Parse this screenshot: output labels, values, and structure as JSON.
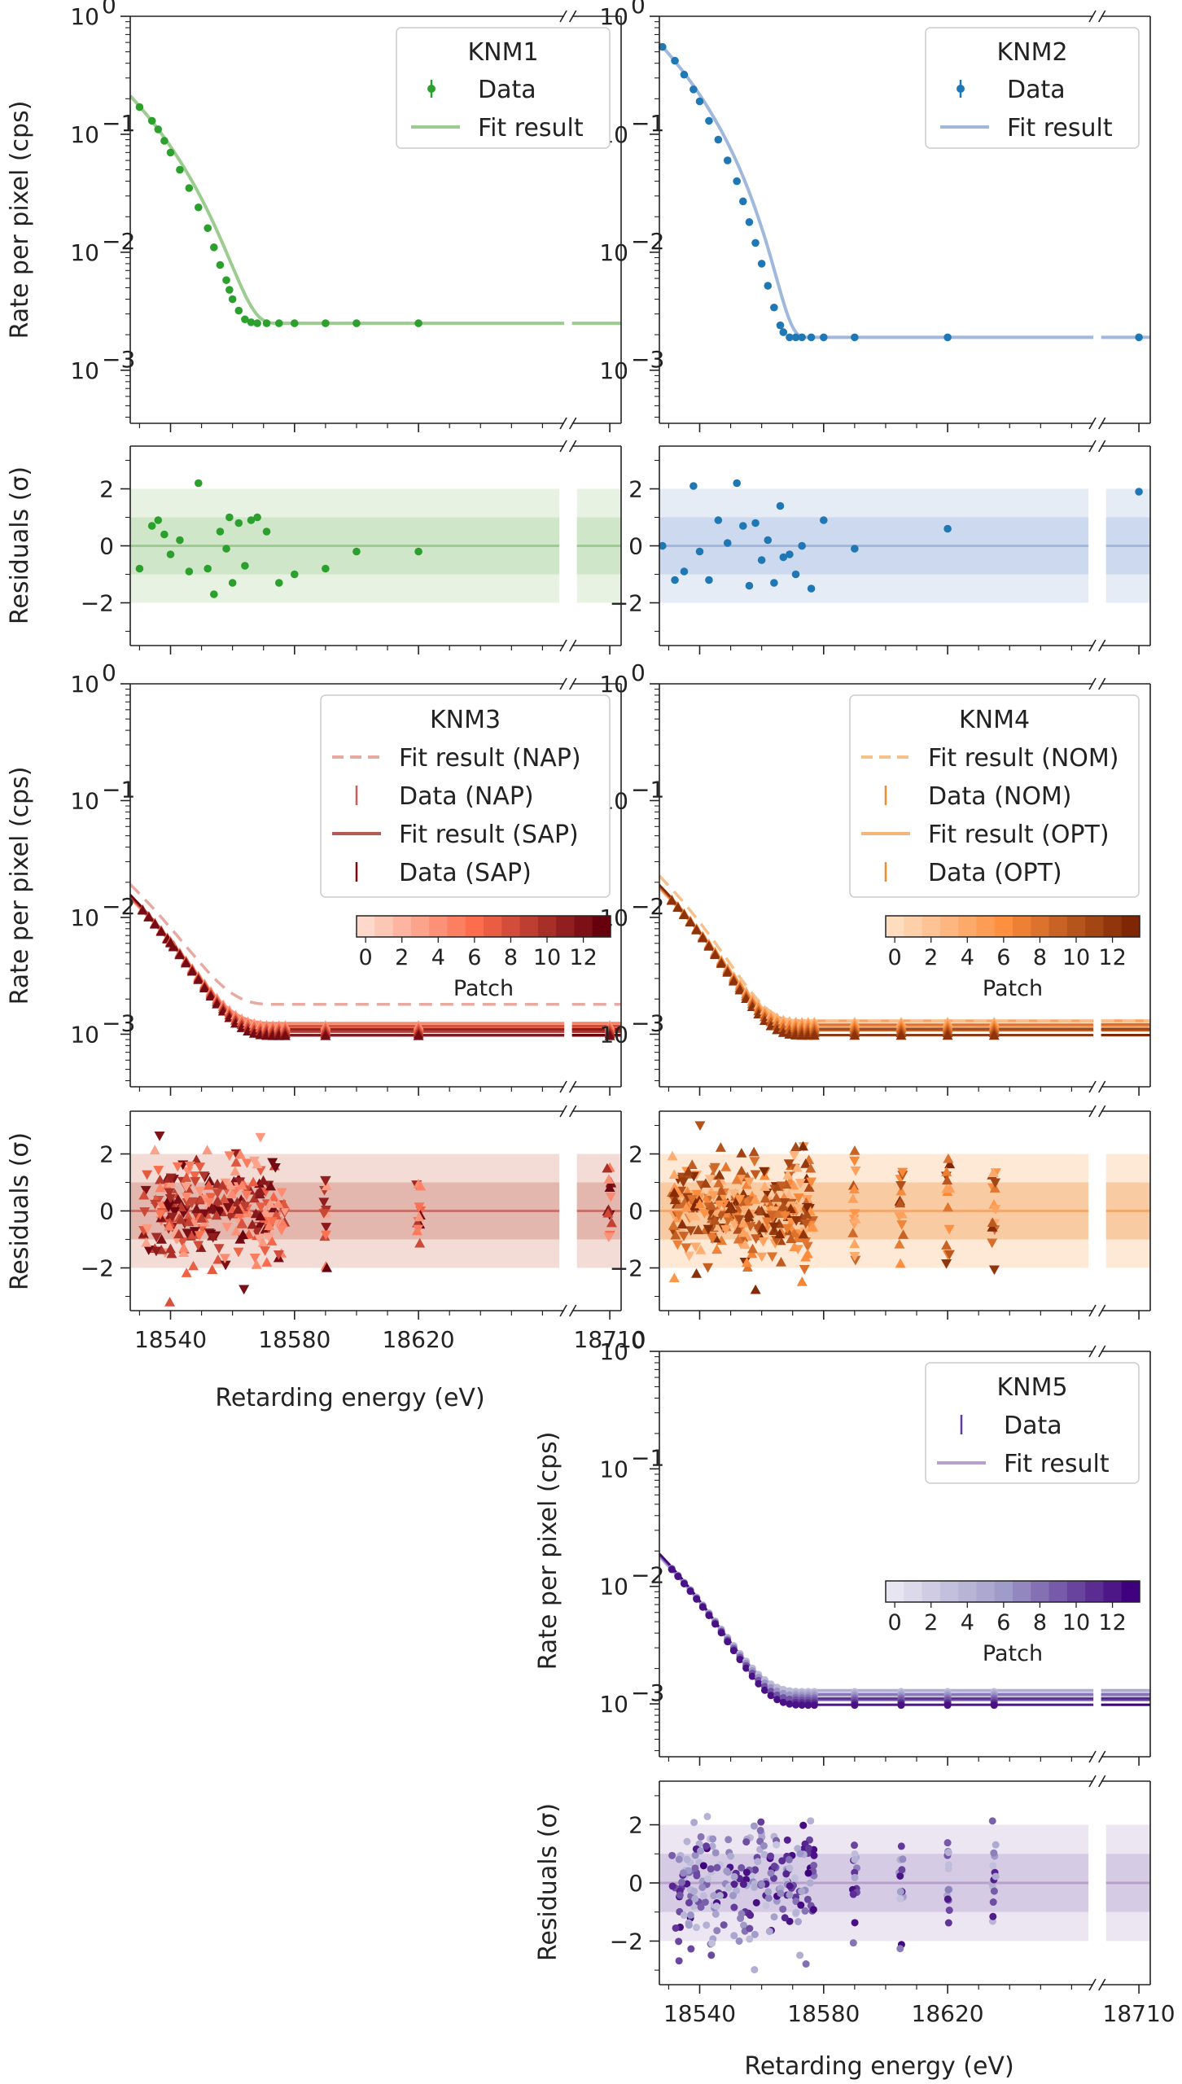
{
  "figure": {
    "xlabel": "Retarding energy (eV)",
    "ylabel_rate": "Rate per pixel (cps)",
    "ylabel_res": "Residuals (σ)",
    "x_ticks": [
      "18540",
      "18580",
      "18620",
      "18710"
    ],
    "x_tick_values": [
      18540,
      18580,
      18620,
      18710
    ],
    "x_break_segments": [
      [
        18527,
        18667
      ],
      [
        18700,
        18713
      ]
    ],
    "y_rate_ticks": [
      {
        "exp": 0,
        "label_base": "10",
        "label_exp": "0",
        "value": 1
      },
      {
        "exp": -1,
        "label_base": "10",
        "label_exp": "−1",
        "value": 0.1
      },
      {
        "exp": -2,
        "label_base": "10",
        "label_exp": "−2",
        "value": 0.01
      },
      {
        "exp": -3,
        "label_base": "10",
        "label_exp": "−3",
        "value": 0.001
      }
    ],
    "y_res_ticks": [
      "2",
      "0",
      "−2"
    ],
    "y_res_tick_values": [
      2,
      0,
      -2
    ],
    "y_res_range": [
      -3.5,
      3.5
    ],
    "y_rate_range_log10": [
      -3.45,
      0.0
    ]
  },
  "chart_data": [
    {
      "type": "scatter",
      "panel": "KNM1",
      "scale": "log",
      "color": "#2ca02c",
      "fit_color": "#9ccc8f",
      "legend": {
        "title": "KNM1",
        "entries": [
          "Data",
          "Fit result"
        ]
      },
      "x": [
        18530,
        18534,
        18536,
        18538,
        18540,
        18543,
        18546,
        18549,
        18552,
        18554,
        18556,
        18558,
        18559,
        18560,
        18562,
        18564,
        18566,
        18568,
        18571,
        18575,
        18580,
        18590,
        18600,
        18620
      ],
      "rate": [
        0.17,
        0.13,
        0.11,
        0.088,
        0.07,
        0.05,
        0.035,
        0.024,
        0.016,
        0.011,
        0.0078,
        0.0058,
        0.0048,
        0.004,
        0.0032,
        0.0027,
        0.00255,
        0.0025,
        0.0025,
        0.0025,
        0.0025,
        0.0025,
        0.0025,
        0.0025
      ],
      "residuals": [
        -0.8,
        0.7,
        0.9,
        0.4,
        -0.3,
        0.2,
        -0.9,
        2.2,
        -0.8,
        -1.7,
        0.5,
        -0.1,
        1.0,
        -1.3,
        0.8,
        -0.7,
        0.9,
        1.0,
        0.5,
        -1.3,
        -1.0,
        -0.8,
        -0.2,
        -0.2
      ],
      "background_rate": 0.0025
    },
    {
      "type": "scatter",
      "panel": "KNM2",
      "scale": "log",
      "color": "#1f77b4",
      "fit_color": "#9fb8dc",
      "legend": {
        "title": "KNM2",
        "entries": [
          "Data",
          "Fit result"
        ]
      },
      "x": [
        18528,
        18532,
        18535,
        18538,
        18540,
        18543,
        18546,
        18549,
        18552,
        18554,
        18556,
        18558,
        18560,
        18562,
        18564,
        18566,
        18567,
        18569,
        18571,
        18573,
        18576,
        18580,
        18590,
        18620,
        18710
      ],
      "rate": [
        0.55,
        0.42,
        0.32,
        0.24,
        0.19,
        0.13,
        0.09,
        0.06,
        0.04,
        0.027,
        0.018,
        0.012,
        0.008,
        0.0052,
        0.0034,
        0.0024,
        0.0021,
        0.0019,
        0.0019,
        0.0019,
        0.0019,
        0.0019,
        0.0019,
        0.0019,
        0.0019
      ],
      "residuals": [
        0.0,
        -1.2,
        -0.9,
        2.1,
        -0.2,
        -1.2,
        0.9,
        0.1,
        2.2,
        0.7,
        -1.4,
        0.8,
        -0.5,
        0.2,
        -1.3,
        1.4,
        -0.4,
        -0.3,
        -1.0,
        0.0,
        -1.5,
        0.9,
        -0.1,
        0.6,
        1.9
      ],
      "background_rate": 0.0019
    },
    {
      "type": "scatter",
      "panel": "KNM3",
      "scale": "log",
      "palette": "Reds",
      "series": [
        {
          "name": "Fit result (NAP)",
          "style": "dashed",
          "color": "#e8a9a0",
          "background_rate": 0.0018
        },
        {
          "name": "Data (NAP)",
          "marker": "triangle-up",
          "color": "#cd5c5c"
        },
        {
          "name": "Fit result (SAP)",
          "style": "solid",
          "color": "#b45a52",
          "background_rate": 0.00105
        },
        {
          "name": "Data (SAP)",
          "marker": "triangle-down",
          "color": "#7a0a0a"
        }
      ],
      "legend": {
        "title": "KNM3",
        "entries": [
          "Fit result (NAP)",
          "Data (NAP)",
          "Fit result (SAP)",
          "Data (SAP)"
        ]
      },
      "colorbar": {
        "label": "Patch",
        "ticks": [
          "0",
          "2",
          "4",
          "6",
          "8",
          "10",
          "12"
        ],
        "range": [
          0,
          13
        ]
      },
      "scan_points": [
        18540,
        18590,
        18620,
        18710
      ],
      "data_range": [
        18531,
        18577
      ]
    },
    {
      "type": "scatter",
      "panel": "KNM4",
      "scale": "log",
      "palette": "Oranges",
      "series": [
        {
          "name": "Fit result (NOM)",
          "style": "dashed",
          "color": "#f7c08a",
          "background_rate": 0.0013
        },
        {
          "name": "Data (NOM)",
          "marker": "triangle-up",
          "color": "#f08c2e"
        },
        {
          "name": "Fit result (OPT)",
          "style": "solid",
          "color": "#f5b57a",
          "background_rate": 0.00105
        },
        {
          "name": "Data (OPT)",
          "marker": "triangle-down",
          "color": "#f08c2e"
        }
      ],
      "legend": {
        "title": "KNM4",
        "entries": [
          "Fit result (NOM)",
          "Data (NOM)",
          "Fit result (OPT)",
          "Data (OPT)"
        ]
      },
      "colorbar": {
        "label": "Patch",
        "ticks": [
          "0",
          "2",
          "4",
          "6",
          "8",
          "10",
          "12"
        ],
        "range": [
          0,
          13
        ]
      },
      "scan_points": [
        18590,
        18605,
        18620,
        18635
      ],
      "data_range": [
        18531,
        18577
      ]
    },
    {
      "type": "scatter",
      "panel": "KNM5",
      "scale": "log",
      "palette": "Purples",
      "series": [
        {
          "name": "Data",
          "marker": "circle",
          "color": "#5e3c99"
        },
        {
          "name": "Fit result",
          "style": "solid",
          "color": "#b9a0cc",
          "background_rate": 0.0012
        }
      ],
      "legend": {
        "title": "KNM5",
        "entries": [
          "Data",
          "Fit result"
        ]
      },
      "colorbar": {
        "label": "Patch",
        "ticks": [
          "0",
          "2",
          "4",
          "6",
          "8",
          "10",
          "12"
        ],
        "range": [
          0,
          13
        ]
      },
      "scan_points": [
        18590,
        18605,
        18620,
        18635
      ],
      "data_range": [
        18531,
        18577
      ]
    }
  ]
}
